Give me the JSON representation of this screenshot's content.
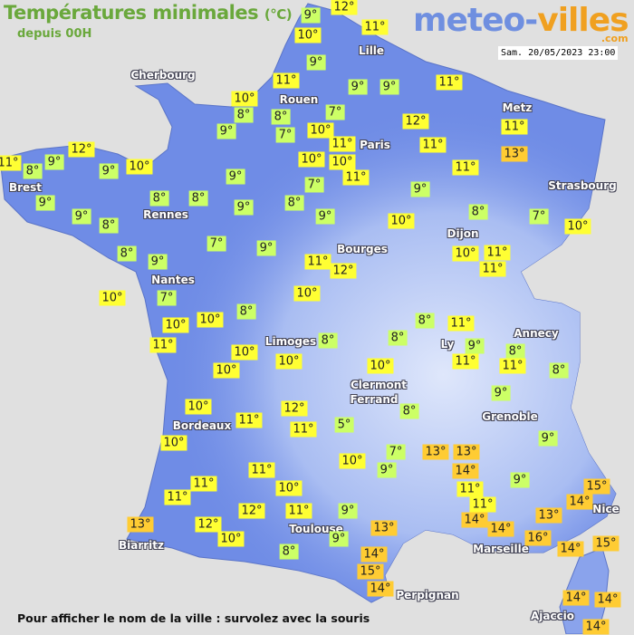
{
  "title": "Températures minimales",
  "title_unit": "(°C)",
  "subtitle": "depuis 00H",
  "logo": {
    "part1": "meteo-",
    "part2": "villes",
    "suffix": ".com"
  },
  "datetime": "Sam. 20/05/2023 23:00",
  "footer": "Pour afficher le nom de la ville : survolez avec la souris",
  "colors": {
    "cool": "#ccff66",
    "mild": "#ffff33",
    "warm": "#ffcc33",
    "sea": "#e0e0e0",
    "land": "#6f8ce6",
    "title": "#6aa83c"
  },
  "cities": [
    "Lille",
    "Cherbourg",
    "Rouen",
    "Metz",
    "Paris",
    "Brest",
    "Strasbourg",
    "Rennes",
    "Dijon",
    "Bourges",
    "Nantes",
    "Annecy",
    "Limoges",
    "Ly",
    "Clermont",
    "Ferrand",
    "Grenoble",
    "Bordeaux",
    "Nice",
    "Toulouse",
    "Biarritz",
    "Marseille",
    "Perpignan",
    "Ajaccio"
  ],
  "temperatures": [
    "9°",
    "12°",
    "10°",
    "11°",
    "9°",
    "11°",
    "9°",
    "9°",
    "11°",
    "10°",
    "8°",
    "8°",
    "7°",
    "12°",
    "9°",
    "7°",
    "10°",
    "11°",
    "11°",
    "11°",
    "13°",
    "12°",
    "11°",
    "8°",
    "9°",
    "9°",
    "10°",
    "10°",
    "10°",
    "11°",
    "9°",
    "11°",
    "7°",
    "9°",
    "9°",
    "8°",
    "8°",
    "9°",
    "8°",
    "9°",
    "8°",
    "9°",
    "10°",
    "8°",
    "7°",
    "10°",
    "8°",
    "9°",
    "7°",
    "9°",
    "11°",
    "12°",
    "10°",
    "11°",
    "11°",
    "10°",
    "7°",
    "10°",
    "10°",
    "10°",
    "8°",
    "11°",
    "10°",
    "10°",
    "8°",
    "8°",
    "8°",
    "11°",
    "9°",
    "8°",
    "11°",
    "11°",
    "8°",
    "10°",
    "10°",
    "9°",
    "10°",
    "12°",
    "11°",
    "11°",
    "5°",
    "8°",
    "10°",
    "10°",
    "7°",
    "9°",
    "13°",
    "13°",
    "14°",
    "9°",
    "11°",
    "9°",
    "11°",
    "11°",
    "11°",
    "10°",
    "15°",
    "14°",
    "11°",
    "12°",
    "11°",
    "9°",
    "13°",
    "14°",
    "13°",
    "12°",
    "14°",
    "10°",
    "13°",
    "9°",
    "16°",
    "14°",
    "15°",
    "8°",
    "14°",
    "15°",
    "14°",
    "14°",
    "14°",
    "14°"
  ]
}
